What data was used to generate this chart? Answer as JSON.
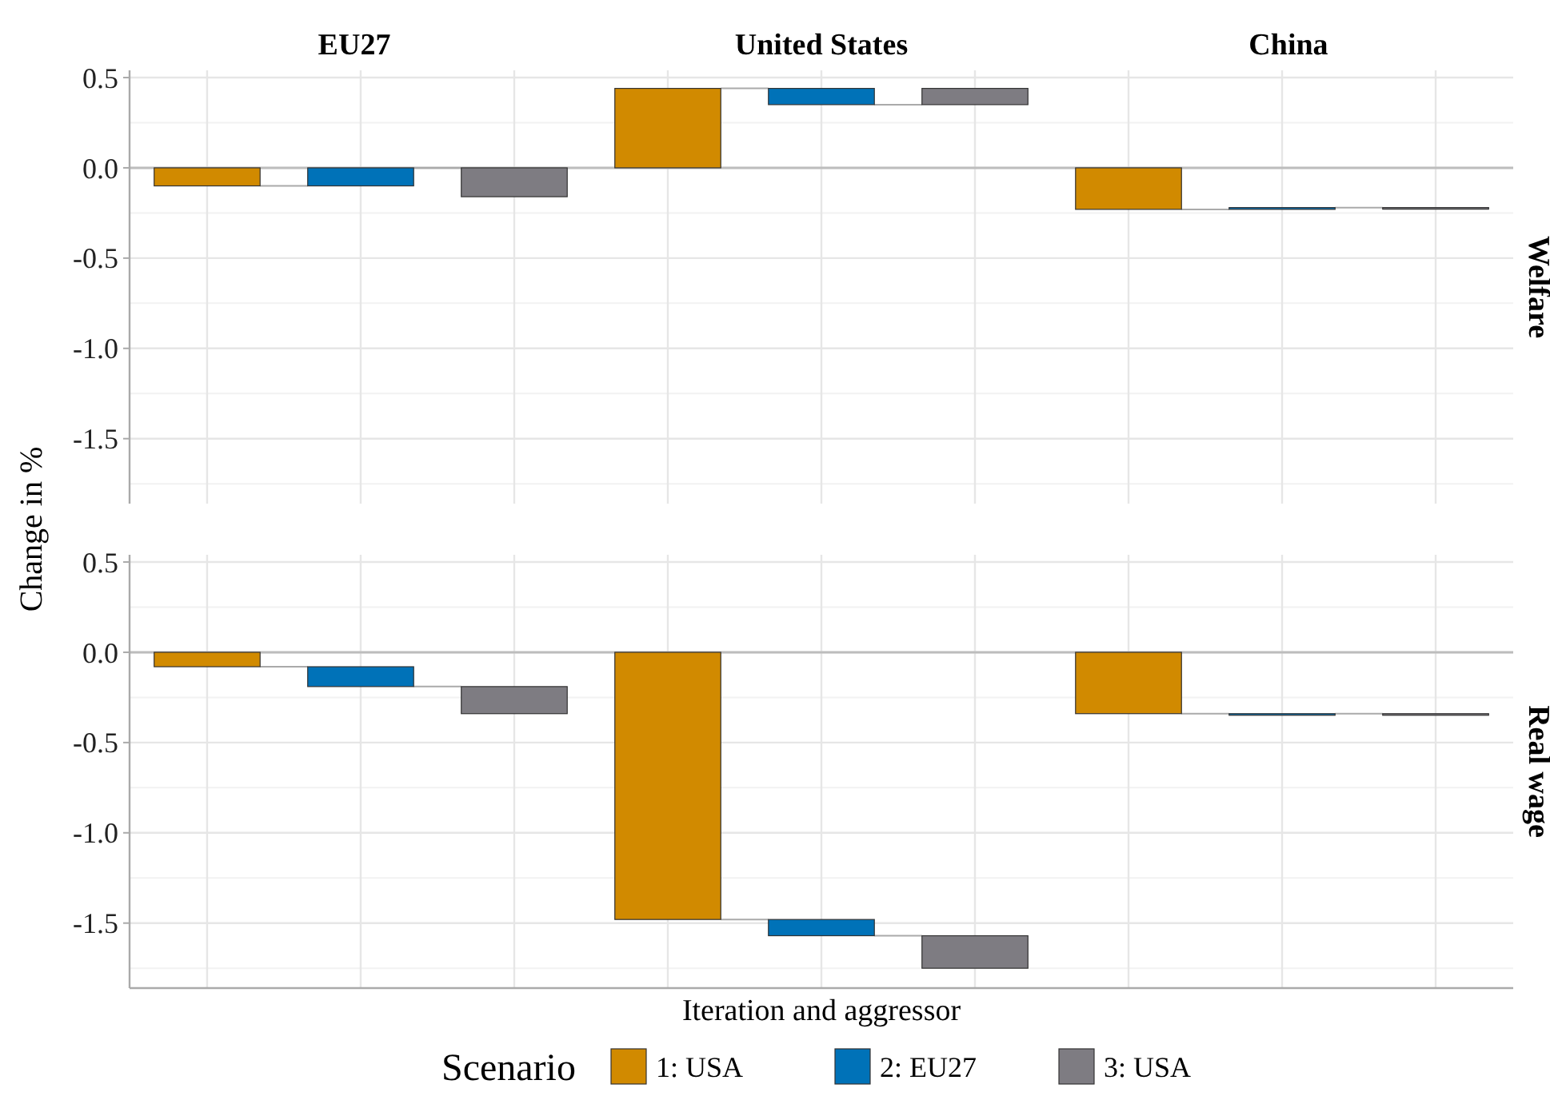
{
  "chart_data": [
    {
      "type": "bar",
      "annotations": [
        "EU27",
        "United States",
        "China"
      ],
      "ylabel": "Change in %",
      "y2label": "Welfare",
      "categories": [
        null,
        null,
        null,
        null,
        null,
        null,
        null,
        null,
        null
      ],
      "values": [
        -0.1,
        0.1,
        -0.16,
        0.44,
        -0.09,
        0.09,
        -0.23,
        0.01,
        0
      ],
      "base": [
        0,
        -0.1,
        0,
        0,
        0.44,
        0.35,
        0,
        -0.23,
        -0.22
      ],
      "colors": [
        "#d18a00",
        "#0072b8",
        "#7e7c82",
        "#d18a00",
        "#0072b8",
        "#7e7c82",
        "#d18a00",
        "#0072b8",
        "#7e7c82"
      ],
      "ylim": [
        -1.86,
        0.54
      ],
      "yticks": [
        {
          "value": -1.5,
          "label": "-1.5"
        },
        {
          "value": -1,
          "label": "-1.0"
        },
        {
          "value": -0.5,
          "label": "-0.5"
        },
        {
          "value": 0,
          "label": "0.0"
        },
        {
          "value": 0.5,
          "label": "0.5"
        }
      ],
      "grid": true,
      "tick_labels": "y",
      "ref_lines": [
        {
          "axis": "y",
          "value": 0,
          "color": "#bdbdbd"
        }
      ]
    },
    {
      "type": "bar",
      "xlabel": "Iteration and aggressor",
      "y2label": "Real wage",
      "categories": [
        null,
        null,
        null,
        null,
        null,
        null,
        null,
        null,
        null
      ],
      "values": [
        -0.08,
        -0.11,
        -0.15,
        -1.48,
        -0.09,
        -0.18,
        -0.34,
        0,
        0
      ],
      "base": [
        0,
        -0.08,
        -0.19,
        0,
        -1.48,
        -1.57,
        0,
        -0.34,
        -0.34
      ],
      "colors": [
        "#d18a00",
        "#0072b8",
        "#7e7c82",
        "#d18a00",
        "#0072b8",
        "#7e7c82",
        "#d18a00",
        "#0072b8",
        "#7e7c82"
      ],
      "ylim": [
        -1.86,
        0.54
      ],
      "yticks": [
        {
          "value": -1.5,
          "label": "-1.5"
        },
        {
          "value": -1,
          "label": "-1.0"
        },
        {
          "value": -0.5,
          "label": "-0.5"
        },
        {
          "value": 0,
          "label": "0.0"
        },
        {
          "value": 0.5,
          "label": "0.5"
        }
      ],
      "grid": true,
      "tick_labels": "y",
      "ref_lines": [
        {
          "axis": "y",
          "value": 0,
          "color": "#bdbdbd"
        }
      ]
    },
    {
      "type": "other",
      "legend_title": "Scenario",
      "legend": "bottom",
      "series": [
        {
          "name": "1: USA",
          "color": "#d18a00"
        },
        {
          "name": "2: EU27",
          "color": "#0072b8"
        },
        {
          "name": "3: USA",
          "color": "#7e7c82"
        }
      ]
    }
  ]
}
